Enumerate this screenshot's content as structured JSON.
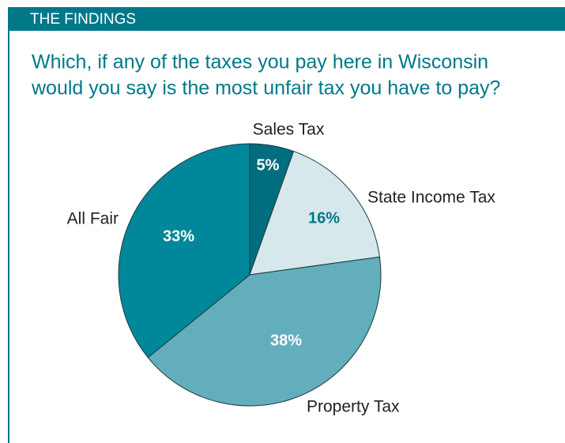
{
  "header": {
    "title": "THE FINDINGS"
  },
  "chart_data": {
    "type": "pie",
    "title": [
      "Which, if any of the taxes you pay here in Wisconsin",
      "would you say is the most unfair tax you have to pay?"
    ],
    "categories": [
      "Sales Tax",
      "State Income Tax",
      "Property Tax",
      "All Fair"
    ],
    "values": [
      5,
      16,
      38,
      33
    ],
    "value_labels": [
      "5%",
      "16%",
      "38%",
      "33%"
    ],
    "colors": [
      "#006e7f",
      "#d6e8ec",
      "#62aebc",
      "#00889a"
    ]
  }
}
